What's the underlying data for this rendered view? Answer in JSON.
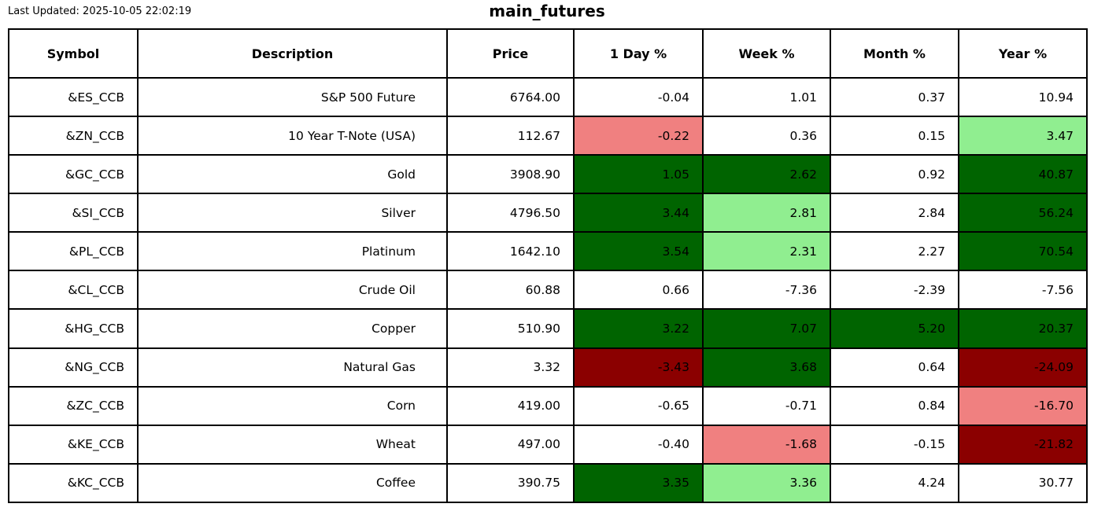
{
  "header": {
    "last_updated": "Last Updated: 2025-10-05 22:02:19",
    "title": "main_futures"
  },
  "colors": {
    "strong_gain": "#006400",
    "gain": "#90EE90",
    "loss": "#F08080",
    "strong_loss": "#8B0000",
    "neutral": "#FFFFFF"
  },
  "chart_data": {
    "type": "table",
    "title": "main_futures",
    "columns": [
      "Symbol",
      "Description",
      "Price",
      "1 Day %",
      "Week %",
      "Month %",
      "Year %"
    ],
    "rows": [
      {
        "symbol": "&ES_CCB",
        "description": "S&P 500 Future",
        "price": "6764.00",
        "pcts": [
          {
            "value": "-0.04",
            "tone": "neutral"
          },
          {
            "value": "1.01",
            "tone": "neutral"
          },
          {
            "value": "0.37",
            "tone": "neutral"
          },
          {
            "value": "10.94",
            "tone": "neutral"
          }
        ]
      },
      {
        "symbol": "&ZN_CCB",
        "description": "10 Year T-Note (USA)",
        "price": "112.67",
        "pcts": [
          {
            "value": "-0.22",
            "tone": "loss"
          },
          {
            "value": "0.36",
            "tone": "neutral"
          },
          {
            "value": "0.15",
            "tone": "neutral"
          },
          {
            "value": "3.47",
            "tone": "gain"
          }
        ]
      },
      {
        "symbol": "&GC_CCB",
        "description": "Gold",
        "price": "3908.90",
        "pcts": [
          {
            "value": "1.05",
            "tone": "strong_gain"
          },
          {
            "value": "2.62",
            "tone": "strong_gain"
          },
          {
            "value": "0.92",
            "tone": "neutral"
          },
          {
            "value": "40.87",
            "tone": "strong_gain"
          }
        ]
      },
      {
        "symbol": "&SI_CCB",
        "description": "Silver",
        "price": "4796.50",
        "pcts": [
          {
            "value": "3.44",
            "tone": "strong_gain"
          },
          {
            "value": "2.81",
            "tone": "gain"
          },
          {
            "value": "2.84",
            "tone": "neutral"
          },
          {
            "value": "56.24",
            "tone": "strong_gain"
          }
        ]
      },
      {
        "symbol": "&PL_CCB",
        "description": "Platinum",
        "price": "1642.10",
        "pcts": [
          {
            "value": "3.54",
            "tone": "strong_gain"
          },
          {
            "value": "2.31",
            "tone": "gain"
          },
          {
            "value": "2.27",
            "tone": "neutral"
          },
          {
            "value": "70.54",
            "tone": "strong_gain"
          }
        ]
      },
      {
        "symbol": "&CL_CCB",
        "description": "Crude Oil",
        "price": "60.88",
        "pcts": [
          {
            "value": "0.66",
            "tone": "neutral"
          },
          {
            "value": "-7.36",
            "tone": "neutral"
          },
          {
            "value": "-2.39",
            "tone": "neutral"
          },
          {
            "value": "-7.56",
            "tone": "neutral"
          }
        ]
      },
      {
        "symbol": "&HG_CCB",
        "description": "Copper",
        "price": "510.90",
        "pcts": [
          {
            "value": "3.22",
            "tone": "strong_gain"
          },
          {
            "value": "7.07",
            "tone": "strong_gain"
          },
          {
            "value": "5.20",
            "tone": "strong_gain"
          },
          {
            "value": "20.37",
            "tone": "strong_gain"
          }
        ]
      },
      {
        "symbol": "&NG_CCB",
        "description": "Natural Gas",
        "price": "3.32",
        "pcts": [
          {
            "value": "-3.43",
            "tone": "strong_loss"
          },
          {
            "value": "3.68",
            "tone": "strong_gain"
          },
          {
            "value": "0.64",
            "tone": "neutral"
          },
          {
            "value": "-24.09",
            "tone": "strong_loss"
          }
        ]
      },
      {
        "symbol": "&ZC_CCB",
        "description": "Corn",
        "price": "419.00",
        "pcts": [
          {
            "value": "-0.65",
            "tone": "neutral"
          },
          {
            "value": "-0.71",
            "tone": "neutral"
          },
          {
            "value": "0.84",
            "tone": "neutral"
          },
          {
            "value": "-16.70",
            "tone": "loss"
          }
        ]
      },
      {
        "symbol": "&KE_CCB",
        "description": "Wheat",
        "price": "497.00",
        "pcts": [
          {
            "value": "-0.40",
            "tone": "neutral"
          },
          {
            "value": "-1.68",
            "tone": "loss"
          },
          {
            "value": "-0.15",
            "tone": "neutral"
          },
          {
            "value": "-21.82",
            "tone": "strong_loss"
          }
        ]
      },
      {
        "symbol": "&KC_CCB",
        "description": "Coffee",
        "price": "390.75",
        "pcts": [
          {
            "value": "3.35",
            "tone": "strong_gain"
          },
          {
            "value": "3.36",
            "tone": "gain"
          },
          {
            "value": "4.24",
            "tone": "neutral"
          },
          {
            "value": "30.77",
            "tone": "neutral"
          }
        ]
      }
    ]
  }
}
